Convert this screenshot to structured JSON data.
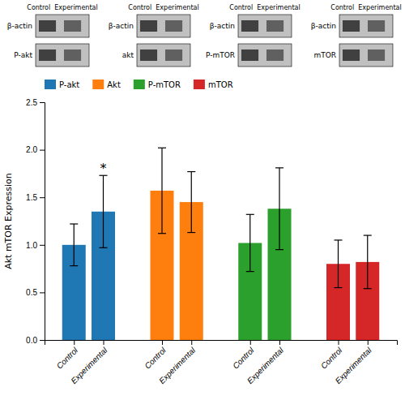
{
  "chart_data": [
    {
      "type": "blot",
      "panels": [
        {
          "title": "Control  Experimental",
          "rows": [
            "β-actin",
            "P-akt"
          ]
        },
        {
          "title": "Control  Experimental",
          "rows": [
            "β-actin",
            "akt"
          ]
        },
        {
          "title": "Control  Experimental",
          "rows": [
            "β-actin",
            "P-mTOR"
          ]
        },
        {
          "title": "Control  Experimental",
          "rows": [
            "β-actin",
            "mTOR"
          ]
        }
      ]
    },
    {
      "type": "bar",
      "ylabel": "Akt mTOR Expression",
      "categories": [
        "Control",
        "Experimental"
      ],
      "series": [
        {
          "name": "P-akt",
          "values": [
            1.0,
            1.35
          ],
          "errors": [
            0.22,
            0.38
          ]
        },
        {
          "name": "Akt",
          "values": [
            1.57,
            1.45
          ],
          "errors": [
            0.45,
            0.32
          ]
        },
        {
          "name": "P-mTOR",
          "values": [
            1.02,
            1.38
          ],
          "errors": [
            0.3,
            0.43
          ]
        },
        {
          "name": "mTOR",
          "values": [
            0.8,
            0.82
          ],
          "errors": [
            0.25,
            0.28
          ]
        }
      ],
      "ylim": [
        0.0,
        2.5
      ],
      "yticks": [
        {
          "value": 0.0,
          "label": "0.0"
        },
        0.5,
        {
          "value": 1.0,
          "label": "1.0"
        },
        1.5,
        {
          "value": 2.0,
          "label": "2.0"
        },
        2.5
      ],
      "grid": false,
      "legend": "top",
      "annotations": [
        {
          "text": "*",
          "series": 0,
          "index": 1
        }
      ]
    }
  ]
}
